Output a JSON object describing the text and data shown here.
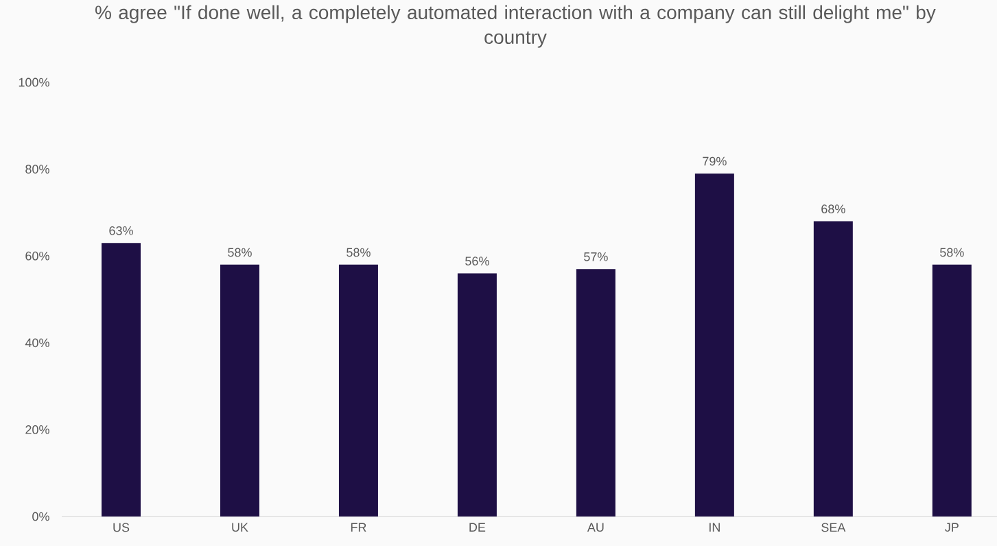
{
  "chart_data": {
    "type": "bar",
    "title": "% agree \"If done well, a completely automated interaction with a company can still delight me\" by country",
    "categories": [
      "US",
      "UK",
      "FR",
      "DE",
      "AU",
      "IN",
      "SEA",
      "JP"
    ],
    "values": [
      63,
      58,
      58,
      56,
      57,
      79,
      68,
      58
    ],
    "value_labels": [
      "63%",
      "58%",
      "58%",
      "56%",
      "57%",
      "79%",
      "68%",
      "58%"
    ],
    "color": "#1e0f45",
    "ylim": [
      0,
      100
    ],
    "yticks": [
      {
        "value": 0,
        "label": "0%"
      },
      {
        "value": 20,
        "label": "20%"
      },
      {
        "value": 40,
        "label": "40%"
      },
      {
        "value": 60,
        "label": "60%"
      },
      {
        "value": 80,
        "label": "80%"
      },
      {
        "value": 100,
        "label": "100%"
      }
    ]
  }
}
